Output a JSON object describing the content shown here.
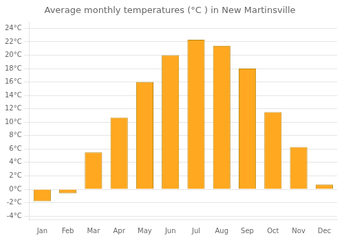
{
  "chart_data": {
    "type": "bar",
    "title": "Average monthly temperatures (°C ) in New Martinsville",
    "categories": [
      "Jan",
      "Feb",
      "Mar",
      "Apr",
      "May",
      "Jun",
      "Jul",
      "Aug",
      "Sep",
      "Oct",
      "Nov",
      "Dec"
    ],
    "values": [
      -1.8,
      -0.6,
      5.5,
      10.7,
      16.0,
      20.0,
      22.3,
      21.4,
      18.0,
      11.5,
      6.3,
      0.7
    ],
    "color": "#FFA820",
    "ylim": [
      -4.5,
      25
    ],
    "yticks": [
      {
        "value": -4,
        "label": "-4°C"
      },
      {
        "value": -2,
        "label": "-2°C"
      },
      {
        "value": 0,
        "label": "0°C"
      },
      {
        "value": 2,
        "label": "2°C"
      },
      {
        "value": 4,
        "label": "4°C"
      },
      {
        "value": 6,
        "label": "6°C"
      },
      {
        "value": 8,
        "label": "8°C"
      },
      {
        "value": 10,
        "label": "10°C"
      },
      {
        "value": 12,
        "label": "12°C"
      },
      {
        "value": 14,
        "label": "14°C"
      },
      {
        "value": 16,
        "label": "16°C"
      },
      {
        "value": 18,
        "label": "18°C"
      },
      {
        "value": 20,
        "label": "20°C"
      },
      {
        "value": 22,
        "label": "22°C"
      },
      {
        "value": 24,
        "label": "24°C"
      }
    ],
    "grid": true
  }
}
